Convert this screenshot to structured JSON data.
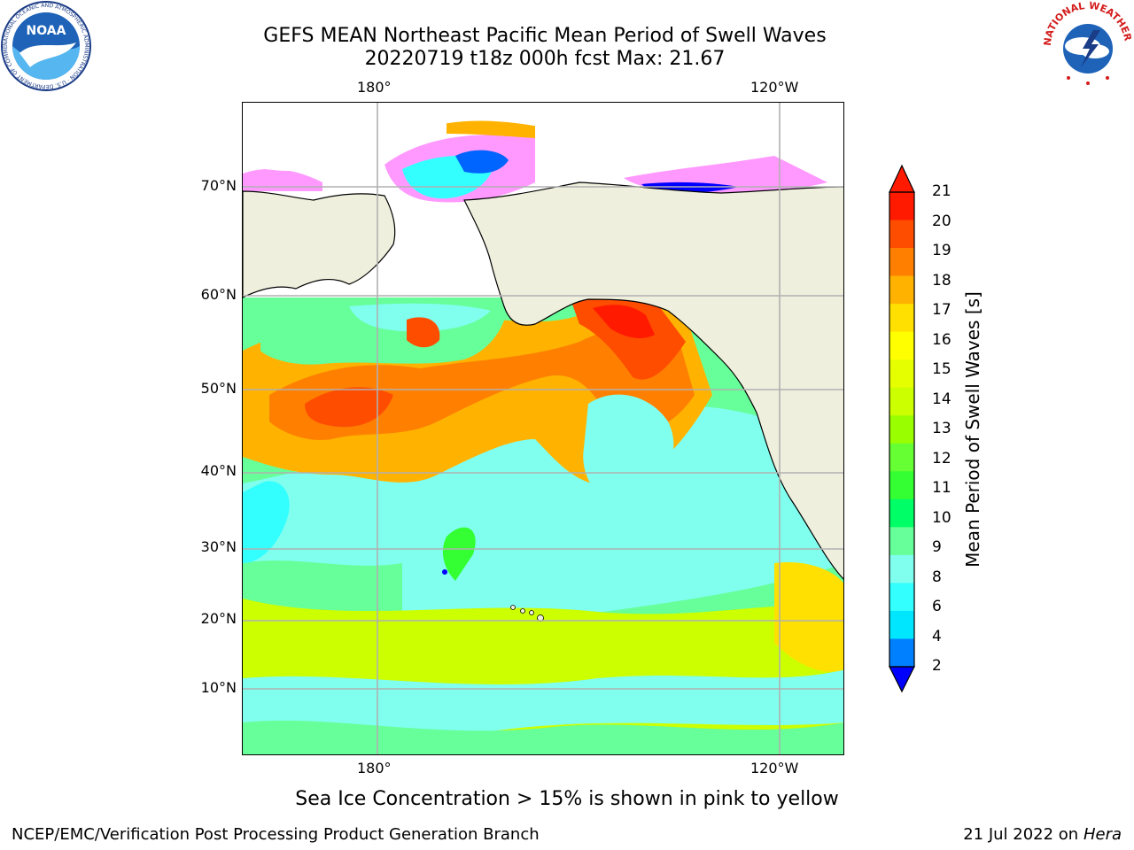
{
  "header": {
    "title_line1": "GEFS MEAN Northeast Pacific Mean Period of Swell Waves",
    "title_line2": "20220719 t18z 000h fcst   Max: 21.67"
  },
  "map": {
    "lon_labels_top": [
      "180°",
      "120°W"
    ],
    "lon_labels_bottom": [
      "180°",
      "120°W"
    ],
    "lat_labels": [
      "70°N",
      "60°N",
      "50°N",
      "40°N",
      "30°N",
      "20°N",
      "10°N"
    ],
    "land_color": "#efefde",
    "grid_color": "#b0b0b0"
  },
  "colorbar": {
    "label": "Mean Period of Swell Waves [s]",
    "ticks": [
      "21",
      "20",
      "19",
      "18",
      "17",
      "16",
      "15",
      "14",
      "13",
      "12",
      "11",
      "10",
      "9",
      "8",
      "6",
      "4",
      "2"
    ],
    "colors_top_to_bottom": [
      "#ff1a00",
      "#ff4d00",
      "#ff8000",
      "#ffb300",
      "#ffe000",
      "#ffff00",
      "#e6ff00",
      "#ccff00",
      "#99ff00",
      "#66ff33",
      "#33ff33",
      "#00ff66",
      "#66ff99",
      "#80ffee",
      "#33ffff",
      "#00e6ff",
      "#0080ff"
    ],
    "extend_top_color": "#ff1a00",
    "extend_bottom_color": "#0000ff"
  },
  "caption": "Sea Ice Concentration > 15% is shown in pink to yellow",
  "footer": {
    "left": "NCEP/EMC/Verification Post Processing Product Generation Branch",
    "right_date": "21 Jul 2022 on ",
    "right_host": "Hera"
  },
  "logos": {
    "noaa_text": "NOAA",
    "noaa_ring_text": "NATIONAL OCEANIC AND ATMOSPHERIC ADMINISTRATION · U.S. DEPARTMENT OF COMMERCE",
    "nws_ring_text": "NATIONAL WEATHER SERVICE"
  }
}
